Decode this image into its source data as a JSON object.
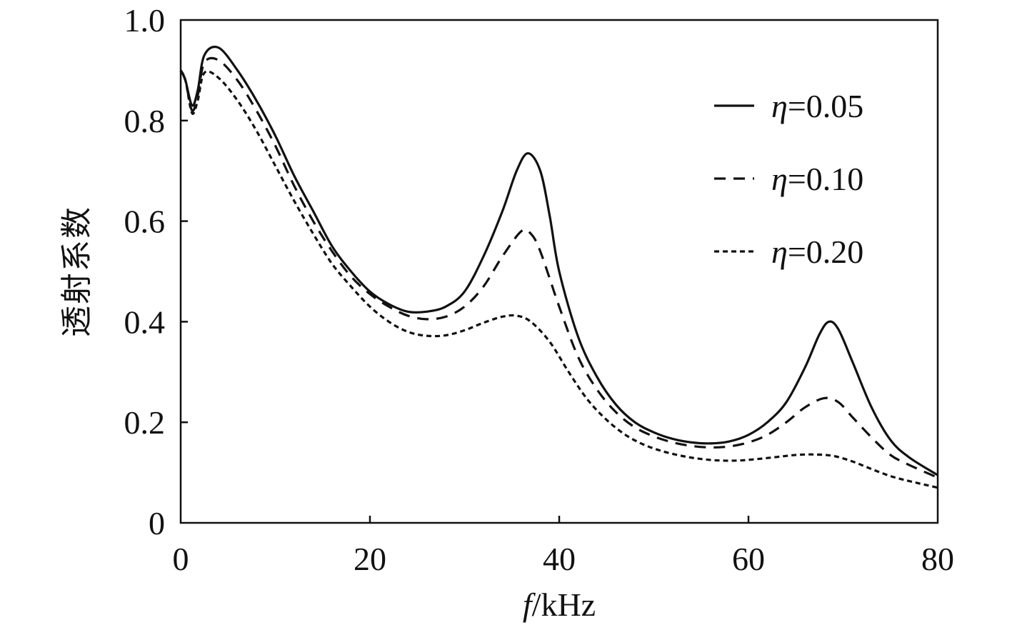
{
  "chart_data": {
    "type": "line",
    "xlabel_italic": "f",
    "xlabel_unit": "/kHz",
    "ylabel": "透射系数",
    "xlim": [
      0,
      80
    ],
    "ylim": [
      0,
      1.0
    ],
    "x_ticks": [
      "0",
      "20",
      "40",
      "60",
      "80"
    ],
    "y_ticks": [
      "0",
      "0.2",
      "0.4",
      "0.6",
      "0.8",
      "1.0"
    ],
    "legend_position": "top-right",
    "grid": false,
    "series": [
      {
        "name": "η=0.05",
        "symbol": "η",
        "value_text": "=0.05",
        "style": "solid",
        "points": [
          [
            0,
            0.9
          ],
          [
            0.5,
            0.88
          ],
          [
            1.2,
            0.83
          ],
          [
            1.8,
            0.86
          ],
          [
            2.5,
            0.93
          ],
          [
            4,
            0.945
          ],
          [
            6,
            0.9
          ],
          [
            8,
            0.84
          ],
          [
            10,
            0.77
          ],
          [
            12,
            0.69
          ],
          [
            14,
            0.62
          ],
          [
            16,
            0.55
          ],
          [
            18,
            0.5
          ],
          [
            20,
            0.46
          ],
          [
            22,
            0.435
          ],
          [
            24,
            0.42
          ],
          [
            26,
            0.42
          ],
          [
            28,
            0.43
          ],
          [
            30,
            0.46
          ],
          [
            32,
            0.53
          ],
          [
            34,
            0.62
          ],
          [
            35.5,
            0.7
          ],
          [
            36.7,
            0.735
          ],
          [
            38,
            0.7
          ],
          [
            39,
            0.61
          ],
          [
            40,
            0.5
          ],
          [
            42,
            0.37
          ],
          [
            44,
            0.29
          ],
          [
            46,
            0.235
          ],
          [
            48,
            0.2
          ],
          [
            50,
            0.18
          ],
          [
            52,
            0.167
          ],
          [
            54,
            0.16
          ],
          [
            56,
            0.158
          ],
          [
            58,
            0.162
          ],
          [
            60,
            0.175
          ],
          [
            62,
            0.2
          ],
          [
            64,
            0.24
          ],
          [
            66,
            0.31
          ],
          [
            67.5,
            0.375
          ],
          [
            68.5,
            0.4
          ],
          [
            69.5,
            0.385
          ],
          [
            71,
            0.32
          ],
          [
            73,
            0.23
          ],
          [
            75,
            0.165
          ],
          [
            77,
            0.13
          ],
          [
            80,
            0.095
          ]
        ]
      },
      {
        "name": "η=0.10",
        "symbol": "η",
        "value_text": "=0.10",
        "style": "dashed",
        "points": [
          [
            0,
            0.9
          ],
          [
            0.5,
            0.88
          ],
          [
            1.2,
            0.82
          ],
          [
            1.8,
            0.85
          ],
          [
            2.5,
            0.915
          ],
          [
            4,
            0.92
          ],
          [
            6,
            0.88
          ],
          [
            8,
            0.82
          ],
          [
            10,
            0.75
          ],
          [
            12,
            0.67
          ],
          [
            14,
            0.6
          ],
          [
            16,
            0.54
          ],
          [
            18,
            0.49
          ],
          [
            20,
            0.455
          ],
          [
            22,
            0.43
          ],
          [
            24,
            0.412
          ],
          [
            26,
            0.405
          ],
          [
            28,
            0.41
          ],
          [
            30,
            0.43
          ],
          [
            32,
            0.47
          ],
          [
            34,
            0.53
          ],
          [
            36,
            0.58
          ],
          [
            37,
            0.575
          ],
          [
            38,
            0.54
          ],
          [
            40,
            0.43
          ],
          [
            42,
            0.33
          ],
          [
            44,
            0.265
          ],
          [
            46,
            0.22
          ],
          [
            48,
            0.19
          ],
          [
            50,
            0.172
          ],
          [
            52,
            0.16
          ],
          [
            54,
            0.153
          ],
          [
            56,
            0.15
          ],
          [
            58,
            0.152
          ],
          [
            60,
            0.16
          ],
          [
            62,
            0.175
          ],
          [
            64,
            0.2
          ],
          [
            66,
            0.23
          ],
          [
            68,
            0.248
          ],
          [
            69.5,
            0.24
          ],
          [
            71,
            0.21
          ],
          [
            73,
            0.17
          ],
          [
            75,
            0.135
          ],
          [
            77,
            0.115
          ],
          [
            80,
            0.09
          ]
        ]
      },
      {
        "name": "η=0.20",
        "symbol": "η",
        "value_text": "=0.20",
        "style": "dotted",
        "points": [
          [
            0,
            0.9
          ],
          [
            0.5,
            0.88
          ],
          [
            1.2,
            0.815
          ],
          [
            1.8,
            0.84
          ],
          [
            2.5,
            0.895
          ],
          [
            4,
            0.885
          ],
          [
            6,
            0.84
          ],
          [
            8,
            0.78
          ],
          [
            10,
            0.71
          ],
          [
            12,
            0.64
          ],
          [
            14,
            0.575
          ],
          [
            16,
            0.515
          ],
          [
            18,
            0.47
          ],
          [
            20,
            0.43
          ],
          [
            22,
            0.4
          ],
          [
            24,
            0.38
          ],
          [
            26,
            0.372
          ],
          [
            28,
            0.373
          ],
          [
            30,
            0.383
          ],
          [
            32,
            0.398
          ],
          [
            34,
            0.41
          ],
          [
            35.5,
            0.412
          ],
          [
            37,
            0.4
          ],
          [
            39,
            0.36
          ],
          [
            41,
            0.3
          ],
          [
            43,
            0.245
          ],
          [
            45,
            0.205
          ],
          [
            47,
            0.175
          ],
          [
            49,
            0.155
          ],
          [
            51,
            0.142
          ],
          [
            53,
            0.133
          ],
          [
            55,
            0.127
          ],
          [
            57,
            0.124
          ],
          [
            59,
            0.124
          ],
          [
            61,
            0.127
          ],
          [
            63,
            0.131
          ],
          [
            65,
            0.135
          ],
          [
            67,
            0.136
          ],
          [
            69,
            0.133
          ],
          [
            71,
            0.122
          ],
          [
            73,
            0.107
          ],
          [
            75,
            0.093
          ],
          [
            77,
            0.083
          ],
          [
            80,
            0.07
          ]
        ]
      }
    ]
  }
}
